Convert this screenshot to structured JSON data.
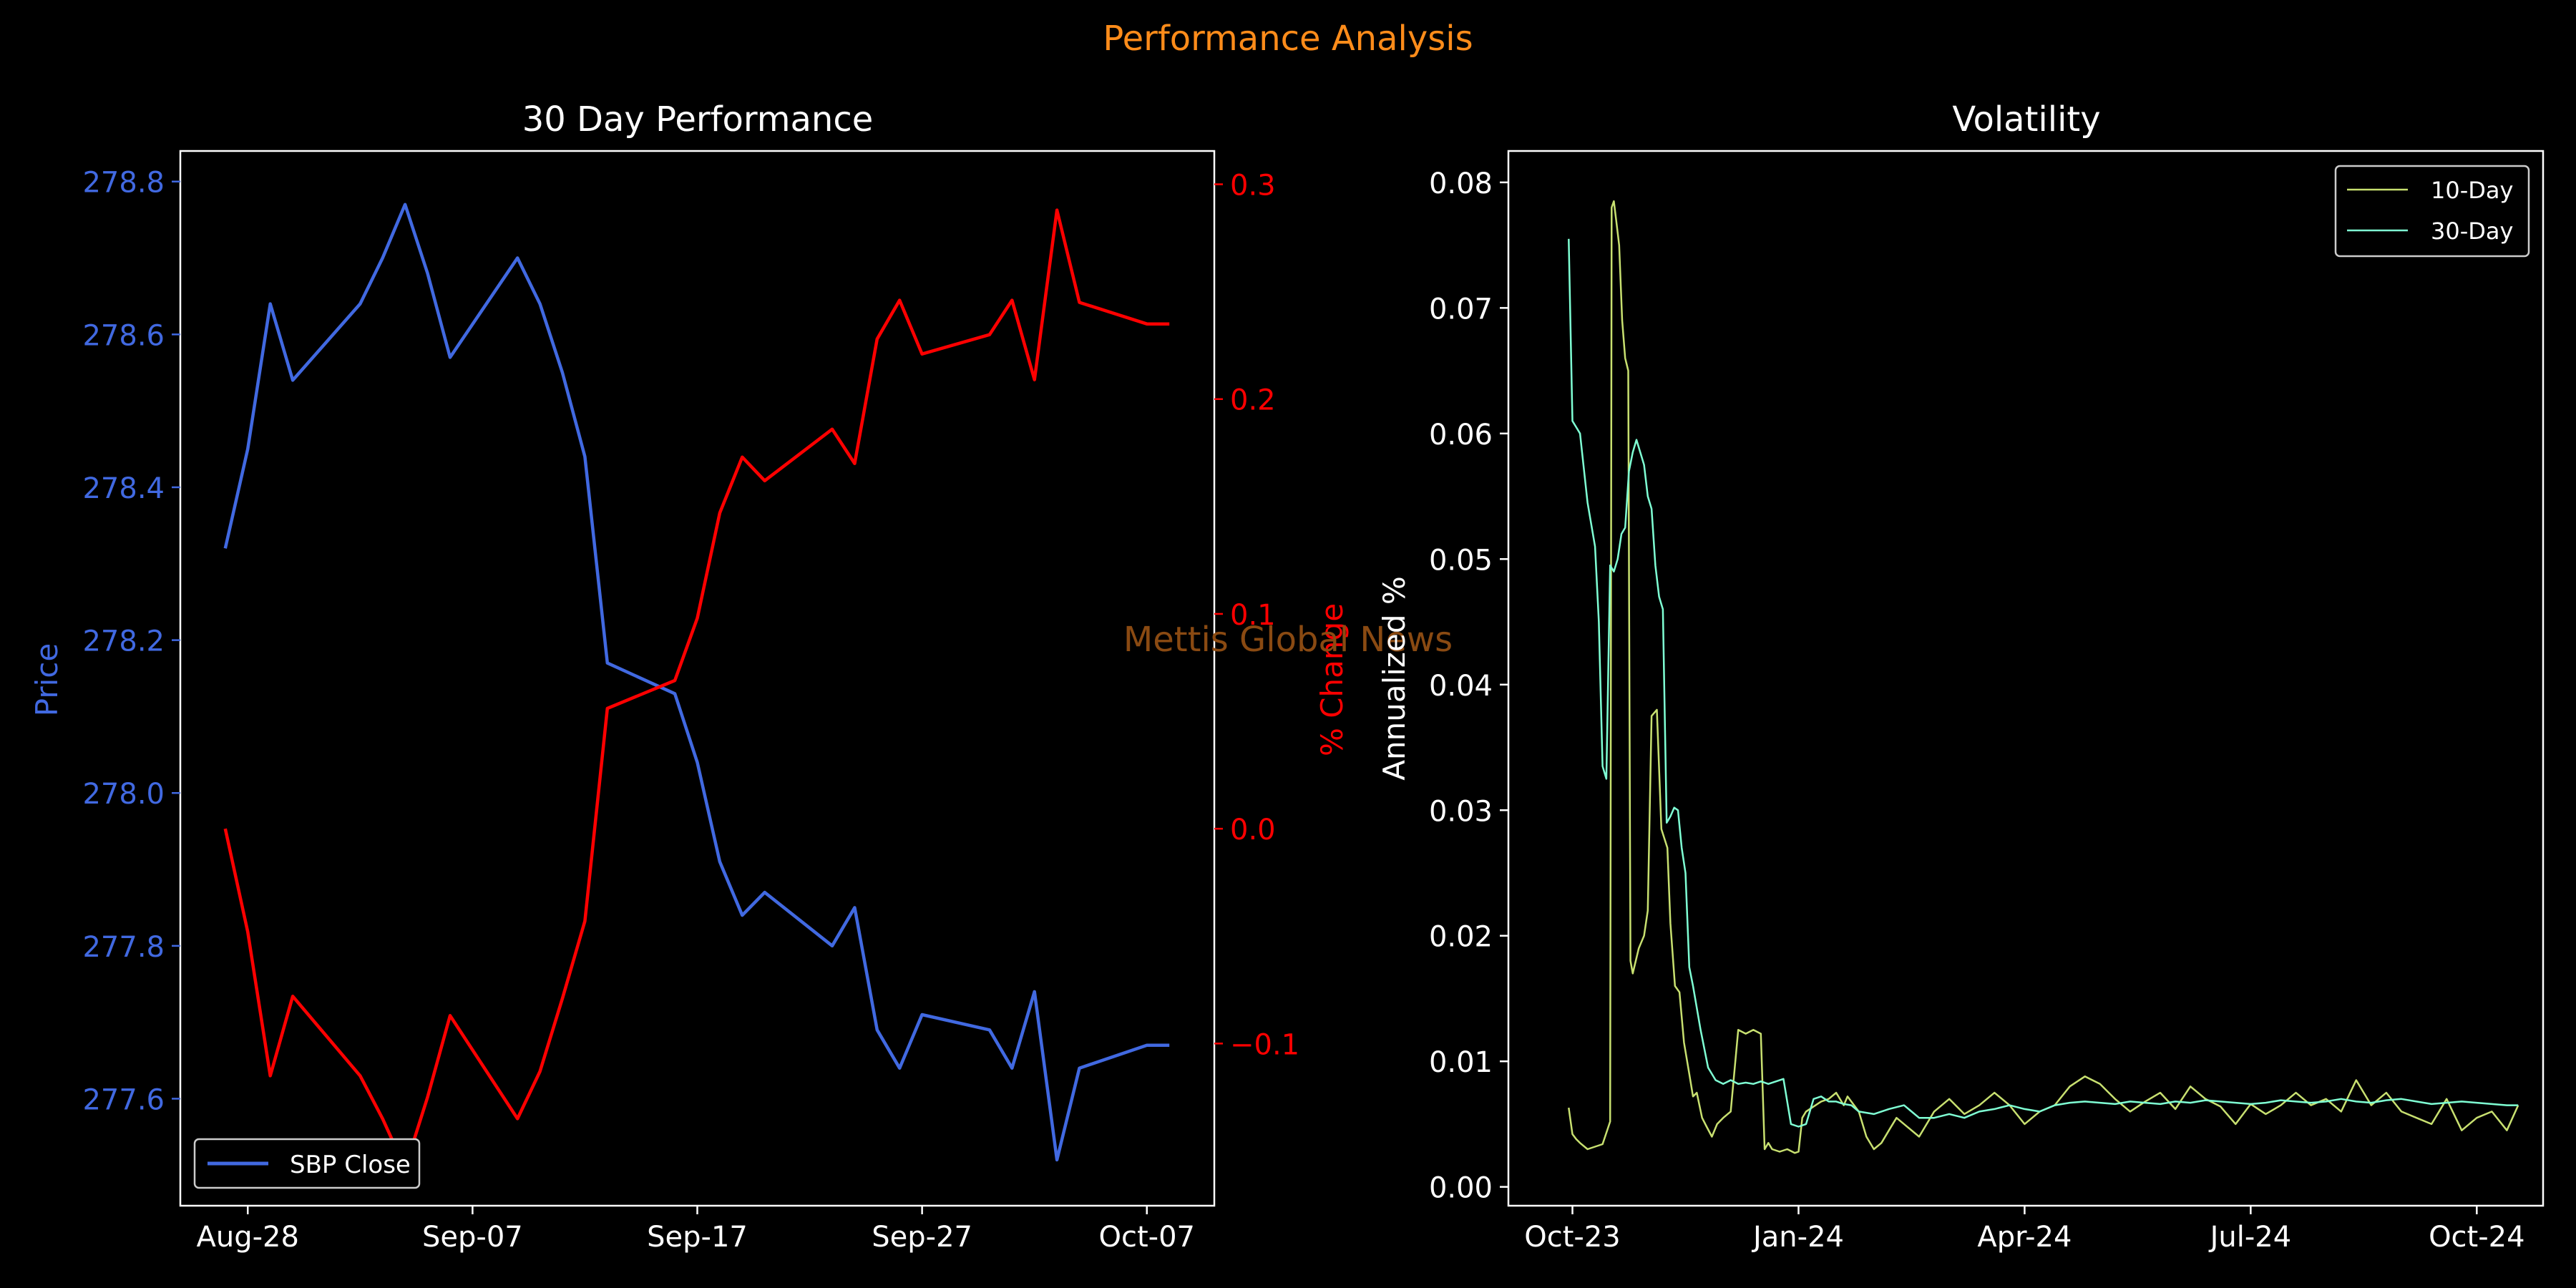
{
  "figure": {
    "title": "Performance Analysis",
    "watermark": "Mettis Global News",
    "colors": {
      "background": "#000000",
      "title": "#ff8c1a",
      "watermark": "#8a4a12",
      "axis": "#ffffff"
    }
  },
  "chart_data": [
    {
      "type": "line",
      "title": "30 Day Performance",
      "ylabel": "Price",
      "y2label": "% Change",
      "ylim": [
        277.46,
        278.84
      ],
      "y2lim": [
        -0.1755,
        0.3155
      ],
      "y_ticks": [
        "277.6",
        "277.8",
        "278.0",
        "278.2",
        "278.4",
        "278.6",
        "278.8"
      ],
      "y2_ticks": [
        "−0.1",
        "0.0",
        "0.1",
        "0.2",
        "0.3"
      ],
      "x_tick_labels": [
        "Aug-28",
        "Sep-07",
        "Sep-17",
        "Sep-27",
        "Oct-07"
      ],
      "x_ticks_day": [
        0,
        10,
        20,
        30,
        40
      ],
      "xlim_day": [
        -3,
        43
      ],
      "legend": {
        "position": "lower-left",
        "entries": [
          "SBP Close"
        ]
      },
      "colors": {
        "price": "#4169e1",
        "pct": "#ff0000"
      },
      "series": [
        {
          "name": "SBP Close",
          "axis": "left",
          "x_day": [
            -1,
            0,
            1,
            2,
            5,
            6,
            7,
            8,
            9,
            12,
            13,
            14,
            15,
            16,
            19,
            20,
            21,
            22,
            23,
            26,
            27,
            28,
            29,
            30,
            33,
            34,
            35,
            36,
            37,
            40,
            41
          ],
          "values": [
            278.32,
            278.45,
            278.64,
            278.54,
            278.64,
            278.7,
            278.77,
            278.68,
            278.57,
            278.7,
            278.64,
            278.55,
            278.44,
            278.17,
            278.13,
            278.04,
            277.91,
            277.84,
            277.87,
            277.8,
            277.85,
            277.69,
            277.64,
            277.71,
            277.69,
            277.64,
            277.74,
            277.52,
            277.64,
            277.67,
            277.67
          ]
        },
        {
          "axis": "right",
          "x_day": [
            -1,
            0,
            1,
            2,
            5,
            6,
            7,
            8,
            9,
            12,
            13,
            14,
            15,
            16,
            19,
            20,
            21,
            22,
            23,
            26,
            27,
            28,
            29,
            30,
            33,
            34,
            35,
            36,
            37,
            40,
            41
          ],
          "values": [
            0.0,
            -0.048,
            -0.115,
            -0.078,
            -0.115,
            -0.135,
            -0.158,
            -0.125,
            -0.087,
            -0.135,
            -0.113,
            -0.079,
            -0.043,
            0.056,
            0.069,
            0.098,
            0.147,
            0.173,
            0.162,
            0.186,
            0.17,
            0.228,
            0.246,
            0.221,
            0.23,
            0.246,
            0.209,
            0.288,
            0.245,
            0.235,
            0.235
          ]
        }
      ]
    },
    {
      "type": "line",
      "title": "Volatility",
      "ylabel": "Annualized %",
      "ylim": [
        -0.0015,
        0.0825
      ],
      "y_ticks": [
        0.0,
        0.01,
        0.02,
        0.03,
        0.04,
        0.05,
        0.06,
        0.07,
        0.08
      ],
      "y_tick_labels": [
        "0.00",
        "0.01",
        "0.02",
        "0.03",
        "0.04",
        "0.05",
        "0.06",
        "0.07",
        "0.08"
      ],
      "x_tick_labels": [
        "Oct-23",
        "Jan-24",
        "Apr-24",
        "Jul-24",
        "Oct-24"
      ],
      "x_ticks_month": [
        0,
        3,
        6,
        9,
        12
      ],
      "xlim_month": [
        -0.85,
        12.88
      ],
      "legend": {
        "position": "top-right",
        "entries": [
          "10-Day",
          "30-Day"
        ]
      },
      "series": [
        {
          "name": "10-Day",
          "color": "#c8e070",
          "x_month": [
            -0.05,
            0,
            0.05,
            0.1,
            0.2,
            0.3,
            0.4,
            0.5,
            0.52,
            0.55,
            0.58,
            0.62,
            0.66,
            0.7,
            0.74,
            0.77,
            0.8,
            0.82,
            0.88,
            0.95,
            1.0,
            1.05,
            1.12,
            1.18,
            1.26,
            1.3,
            1.36,
            1.42,
            1.48,
            1.55,
            1.6,
            1.65,
            1.72,
            1.78,
            1.85,
            1.92,
            2.0,
            2.1,
            2.2,
            2.3,
            2.4,
            2.5,
            2.55,
            2.6,
            2.65,
            2.75,
            2.85,
            2.95,
            3.0,
            3.05,
            3.1,
            3.3,
            3.4,
            3.5,
            3.6,
            3.65,
            3.7,
            3.8,
            3.9,
            4.0,
            4.1,
            4.2,
            4.3,
            4.4,
            4.6,
            4.8,
            5.0,
            5.2,
            5.4,
            5.6,
            5.8,
            6.0,
            6.2,
            6.4,
            6.6,
            6.8,
            7.0,
            7.2,
            7.4,
            7.6,
            7.8,
            8.0,
            8.2,
            8.4,
            8.6,
            8.8,
            9.0,
            9.2,
            9.4,
            9.6,
            9.8,
            10.0,
            10.2,
            10.4,
            10.6,
            10.8,
            11.0,
            11.2,
            11.4,
            11.6,
            11.8,
            12.0,
            12.2,
            12.4,
            12.55
          ],
          "values": [
            0.0063,
            0.0042,
            0.0038,
            0.0035,
            0.003,
            0.0032,
            0.0034,
            0.0052,
            0.078,
            0.0785,
            0.077,
            0.075,
            0.069,
            0.066,
            0.065,
            0.018,
            0.017,
            0.0175,
            0.019,
            0.02,
            0.022,
            0.0375,
            0.038,
            0.0285,
            0.027,
            0.021,
            0.016,
            0.0155,
            0.0115,
            0.009,
            0.0072,
            0.0075,
            0.0055,
            0.0048,
            0.004,
            0.005,
            0.0055,
            0.006,
            0.0125,
            0.0122,
            0.0125,
            0.0122,
            0.003,
            0.0035,
            0.003,
            0.0028,
            0.003,
            0.0027,
            0.0028,
            0.0055,
            0.006,
            0.0068,
            0.007,
            0.0075,
            0.0065,
            0.0072,
            0.0068,
            0.006,
            0.004,
            0.003,
            0.0035,
            0.0045,
            0.0055,
            0.005,
            0.004,
            0.006,
            0.007,
            0.0058,
            0.0065,
            0.0075,
            0.0065,
            0.005,
            0.006,
            0.0065,
            0.008,
            0.0088,
            0.0082,
            0.007,
            0.006,
            0.0068,
            0.0075,
            0.0062,
            0.008,
            0.007,
            0.0064,
            0.005,
            0.0066,
            0.0058,
            0.0065,
            0.0075,
            0.0065,
            0.007,
            0.006,
            0.0085,
            0.0065,
            0.0075,
            0.006,
            0.0055,
            0.005,
            0.007,
            0.0045,
            0.0055,
            0.006,
            0.0045,
            0.0065
          ]
        },
        {
          "name": "30-Day",
          "color": "#7fffd4",
          "x_month": [
            -0.05,
            0,
            0.05,
            0.1,
            0.2,
            0.3,
            0.35,
            0.4,
            0.45,
            0.5,
            0.55,
            0.6,
            0.65,
            0.7,
            0.75,
            0.8,
            0.85,
            0.9,
            0.95,
            1.0,
            1.05,
            1.1,
            1.15,
            1.2,
            1.25,
            1.3,
            1.35,
            1.4,
            1.45,
            1.5,
            1.55,
            1.6,
            1.7,
            1.8,
            1.9,
            2.0,
            2.1,
            2.2,
            2.3,
            2.4,
            2.5,
            2.55,
            2.6,
            2.7,
            2.8,
            2.9,
            3.0,
            3.1,
            3.2,
            3.3,
            3.4,
            3.5,
            3.6,
            3.7,
            3.8,
            4.0,
            4.2,
            4.4,
            4.6,
            4.8,
            5.0,
            5.2,
            5.4,
            5.6,
            5.8,
            6.0,
            6.2,
            6.4,
            6.6,
            6.8,
            7.0,
            7.2,
            7.4,
            7.6,
            7.8,
            8.0,
            8.2,
            8.4,
            8.6,
            8.8,
            9.0,
            9.2,
            9.4,
            9.6,
            9.8,
            10.0,
            10.2,
            10.4,
            10.6,
            10.8,
            11.0,
            11.2,
            11.4,
            11.6,
            11.8,
            12.0,
            12.2,
            12.4,
            12.55
          ],
          "values": [
            0.0755,
            0.061,
            0.0605,
            0.06,
            0.0545,
            0.051,
            0.045,
            0.0335,
            0.0325,
            0.0495,
            0.049,
            0.05,
            0.052,
            0.0525,
            0.057,
            0.0585,
            0.0595,
            0.0585,
            0.0575,
            0.055,
            0.054,
            0.0495,
            0.047,
            0.046,
            0.029,
            0.0295,
            0.0302,
            0.03,
            0.027,
            0.025,
            0.0175,
            0.016,
            0.0125,
            0.0095,
            0.0085,
            0.0082,
            0.0085,
            0.0082,
            0.0083,
            0.0082,
            0.0084,
            0.0083,
            0.0082,
            0.0084,
            0.0086,
            0.005,
            0.0048,
            0.005,
            0.007,
            0.0072,
            0.0068,
            0.0068,
            0.0066,
            0.0065,
            0.006,
            0.0058,
            0.0062,
            0.0065,
            0.0055,
            0.0055,
            0.0058,
            0.0055,
            0.006,
            0.0062,
            0.0065,
            0.0062,
            0.006,
            0.0065,
            0.0067,
            0.0068,
            0.0067,
            0.0066,
            0.0068,
            0.0067,
            0.0066,
            0.0068,
            0.0067,
            0.0069,
            0.0068,
            0.0067,
            0.0066,
            0.0067,
            0.0069,
            0.0068,
            0.0067,
            0.0068,
            0.007,
            0.0068,
            0.0067,
            0.0069,
            0.007,
            0.0068,
            0.0066,
            0.0067,
            0.0068,
            0.0067,
            0.0066,
            0.0065,
            0.0065
          ]
        }
      ]
    }
  ]
}
